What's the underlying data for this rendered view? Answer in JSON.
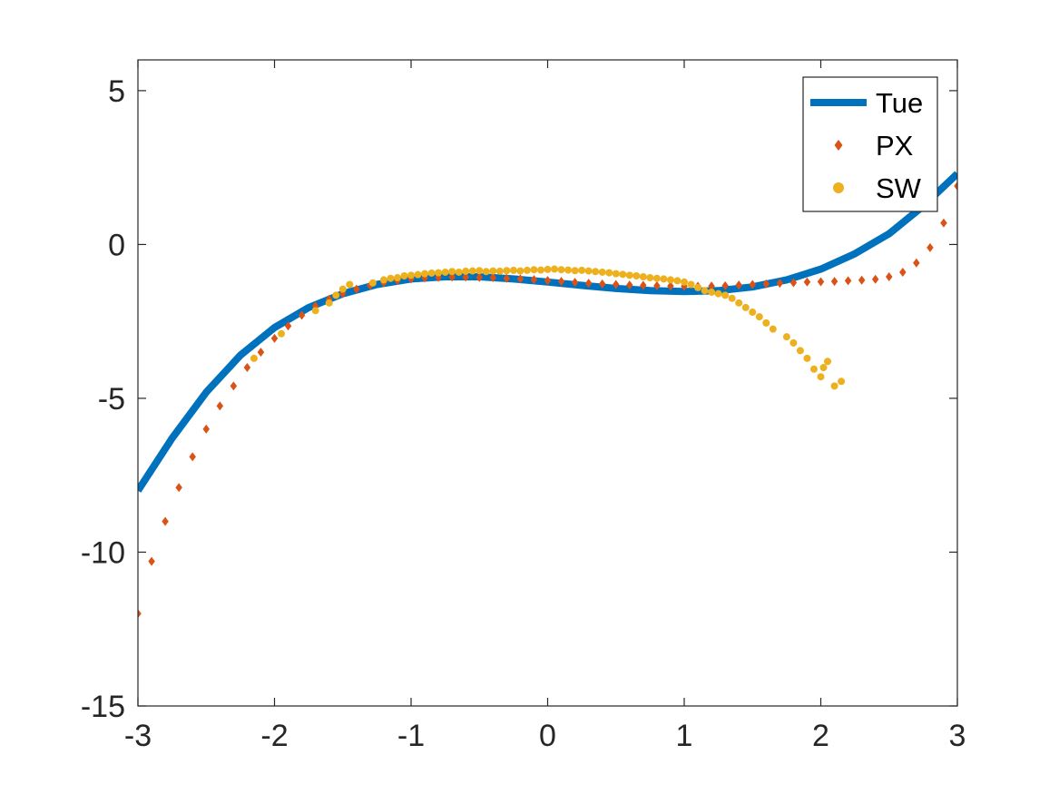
{
  "chart_data": {
    "type": "scatter",
    "title": "",
    "xlabel": "",
    "ylabel": "",
    "xlim": [
      -3,
      3
    ],
    "ylim": [
      -15,
      6
    ],
    "xticks": [
      -3,
      -2,
      -1,
      0,
      1,
      2,
      3
    ],
    "xtick_labels": [
      "-3",
      "-2",
      "-1",
      "0",
      "1",
      "2",
      "3"
    ],
    "yticks": [
      -15,
      -10,
      -5,
      0,
      5
    ],
    "ytick_labels": [
      "-15",
      "-10",
      "-5",
      "0",
      "5"
    ],
    "grid": false,
    "legend_position": "top-right",
    "series": [
      {
        "name": "Tue",
        "kind": "line",
        "color": "#0072BD",
        "x": [
          -3.0,
          -2.75,
          -2.5,
          -2.25,
          -2.0,
          -1.75,
          -1.5,
          -1.25,
          -1.0,
          -0.75,
          -0.5,
          -0.25,
          0.0,
          0.25,
          0.5,
          0.75,
          1.0,
          1.25,
          1.5,
          1.75,
          2.0,
          2.25,
          2.5,
          2.75,
          3.0
        ],
        "y": [
          -8.0,
          -6.3,
          -4.8,
          -3.6,
          -2.7,
          -2.05,
          -1.6,
          -1.3,
          -1.12,
          -1.05,
          -1.05,
          -1.12,
          -1.22,
          -1.33,
          -1.43,
          -1.5,
          -1.53,
          -1.5,
          -1.38,
          -1.15,
          -0.8,
          -0.3,
          0.35,
          1.25,
          2.3
        ]
      },
      {
        "name": "PX",
        "kind": "diamond",
        "color": "#D95319",
        "x": [
          -3.0,
          -2.9,
          -2.8,
          -2.7,
          -2.6,
          -2.5,
          -2.4,
          -2.3,
          -2.2,
          -2.1,
          -2.0,
          -1.9,
          -1.8,
          -1.7,
          -1.6,
          -1.5,
          -1.4,
          -1.3,
          -1.2,
          -1.1,
          -1.0,
          -0.9,
          -0.8,
          -0.7,
          -0.6,
          -0.5,
          -0.4,
          -0.3,
          -0.2,
          -0.1,
          0.0,
          0.1,
          0.2,
          0.3,
          0.4,
          0.5,
          0.6,
          0.7,
          0.8,
          0.9,
          1.0,
          1.1,
          1.2,
          1.3,
          1.4,
          1.5,
          1.6,
          1.7,
          1.8,
          1.9,
          2.0,
          2.1,
          2.2,
          2.3,
          2.4,
          2.5,
          2.6,
          2.7,
          2.8,
          2.9,
          3.0
        ],
        "y": [
          -12.0,
          -10.3,
          -9.0,
          -7.9,
          -6.9,
          -6.0,
          -5.25,
          -4.6,
          -4.0,
          -3.5,
          -3.05,
          -2.65,
          -2.3,
          -2.0,
          -1.78,
          -1.6,
          -1.45,
          -1.33,
          -1.24,
          -1.17,
          -1.12,
          -1.09,
          -1.07,
          -1.06,
          -1.06,
          -1.07,
          -1.08,
          -1.1,
          -1.12,
          -1.14,
          -1.17,
          -1.2,
          -1.23,
          -1.26,
          -1.28,
          -1.3,
          -1.32,
          -1.33,
          -1.34,
          -1.35,
          -1.36,
          -1.36,
          -1.35,
          -1.34,
          -1.32,
          -1.3,
          -1.28,
          -1.26,
          -1.24,
          -1.22,
          -1.21,
          -1.2,
          -1.18,
          -1.16,
          -1.13,
          -1.05,
          -0.9,
          -0.6,
          -0.1,
          0.7,
          1.9
        ]
      },
      {
        "name": "SW",
        "kind": "dot",
        "color": "#EDB120",
        "x": [
          -2.15,
          -1.95,
          -1.7,
          -1.6,
          -1.55,
          -1.5,
          -1.45,
          -1.28,
          -1.2,
          -1.15,
          -1.1,
          -1.05,
          -1.0,
          -0.95,
          -0.9,
          -0.85,
          -0.8,
          -0.75,
          -0.7,
          -0.65,
          -0.6,
          -0.55,
          -0.5,
          -0.45,
          -0.4,
          -0.35,
          -0.3,
          -0.25,
          -0.2,
          -0.15,
          -0.1,
          -0.05,
          0.0,
          0.05,
          0.1,
          0.15,
          0.2,
          0.25,
          0.3,
          0.35,
          0.4,
          0.45,
          0.5,
          0.55,
          0.6,
          0.65,
          0.7,
          0.75,
          0.8,
          0.85,
          0.9,
          0.95,
          1.0,
          1.05,
          1.1,
          1.15,
          1.2,
          1.25,
          1.3,
          1.35,
          1.4,
          1.45,
          1.5,
          1.55,
          1.6,
          1.65,
          1.75,
          1.8,
          1.85,
          1.9,
          1.95,
          2.0,
          2.02,
          2.05,
          2.1,
          2.15
        ],
        "y": [
          -3.7,
          -2.9,
          -2.15,
          -1.9,
          -1.65,
          -1.45,
          -1.3,
          -1.25,
          -1.15,
          -1.1,
          -1.08,
          -1.02,
          -1.0,
          -0.98,
          -0.95,
          -0.93,
          -0.92,
          -0.9,
          -0.88,
          -0.9,
          -0.87,
          -0.86,
          -0.85,
          -0.88,
          -0.86,
          -0.87,
          -0.85,
          -0.84,
          -0.86,
          -0.84,
          -0.82,
          -0.83,
          -0.81,
          -0.8,
          -0.82,
          -0.83,
          -0.85,
          -0.84,
          -0.86,
          -0.88,
          -0.9,
          -0.92,
          -0.95,
          -0.97,
          -1.0,
          -1.02,
          -1.05,
          -1.08,
          -1.1,
          -1.12,
          -1.15,
          -1.18,
          -1.22,
          -1.3,
          -1.4,
          -1.5,
          -1.55,
          -1.6,
          -1.65,
          -1.75,
          -1.9,
          -2.05,
          -2.2,
          -2.35,
          -2.55,
          -2.75,
          -3.0,
          -3.2,
          -3.45,
          -3.7,
          -4.05,
          -4.3,
          -4.0,
          -3.8,
          -4.6,
          -4.45
        ]
      }
    ]
  }
}
